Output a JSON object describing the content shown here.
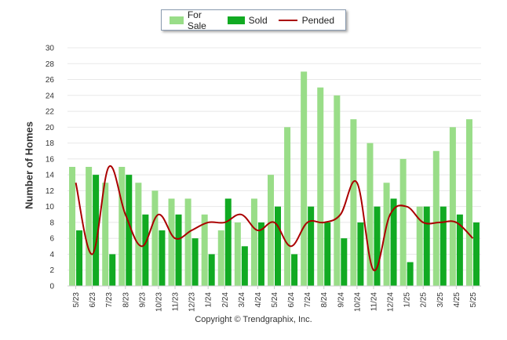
{
  "chart_data": {
    "type": "bar",
    "ylabel": "Number of Homes",
    "xlabel": "",
    "ylim": [
      0,
      30
    ],
    "yticks": [
      0,
      2,
      4,
      6,
      8,
      10,
      12,
      14,
      16,
      18,
      20,
      22,
      24,
      26,
      28,
      30
    ],
    "grid": true,
    "legend_position": "top-center",
    "categories": [
      "5/23",
      "6/23",
      "7/23",
      "8/23",
      "9/23",
      "10/23",
      "11/23",
      "12/23",
      "1/24",
      "2/24",
      "3/24",
      "4/24",
      "5/24",
      "6/24",
      "7/24",
      "8/24",
      "9/24",
      "10/24",
      "11/24",
      "12/24",
      "1/25",
      "2/25",
      "3/25",
      "4/25",
      "5/25"
    ],
    "series": [
      {
        "name": "For Sale",
        "kind": "bar",
        "color": "#99dd88",
        "values": [
          15,
          15,
          13,
          15,
          13,
          12,
          11,
          11,
          9,
          7,
          8,
          11,
          14,
          20,
          27,
          25,
          24,
          21,
          18,
          13,
          16,
          10,
          17,
          20,
          21
        ]
      },
      {
        "name": "Sold",
        "kind": "bar",
        "color": "#11aa22",
        "values": [
          7,
          14,
          4,
          14,
          9,
          7,
          9,
          6,
          4,
          11,
          5,
          8,
          10,
          4,
          10,
          8,
          6,
          8,
          10,
          11,
          3,
          10,
          10,
          9,
          8
        ]
      },
      {
        "name": "Pended",
        "kind": "line",
        "color": "#aa0000",
        "values": [
          13,
          4,
          15,
          9,
          5,
          9,
          6,
          7,
          8,
          8,
          9,
          7,
          8,
          5,
          8,
          8,
          9,
          13,
          2,
          9,
          10,
          8,
          8,
          8,
          6
        ]
      }
    ]
  },
  "footer": {
    "copyright": "Copyright © Trendgraphix, Inc."
  }
}
